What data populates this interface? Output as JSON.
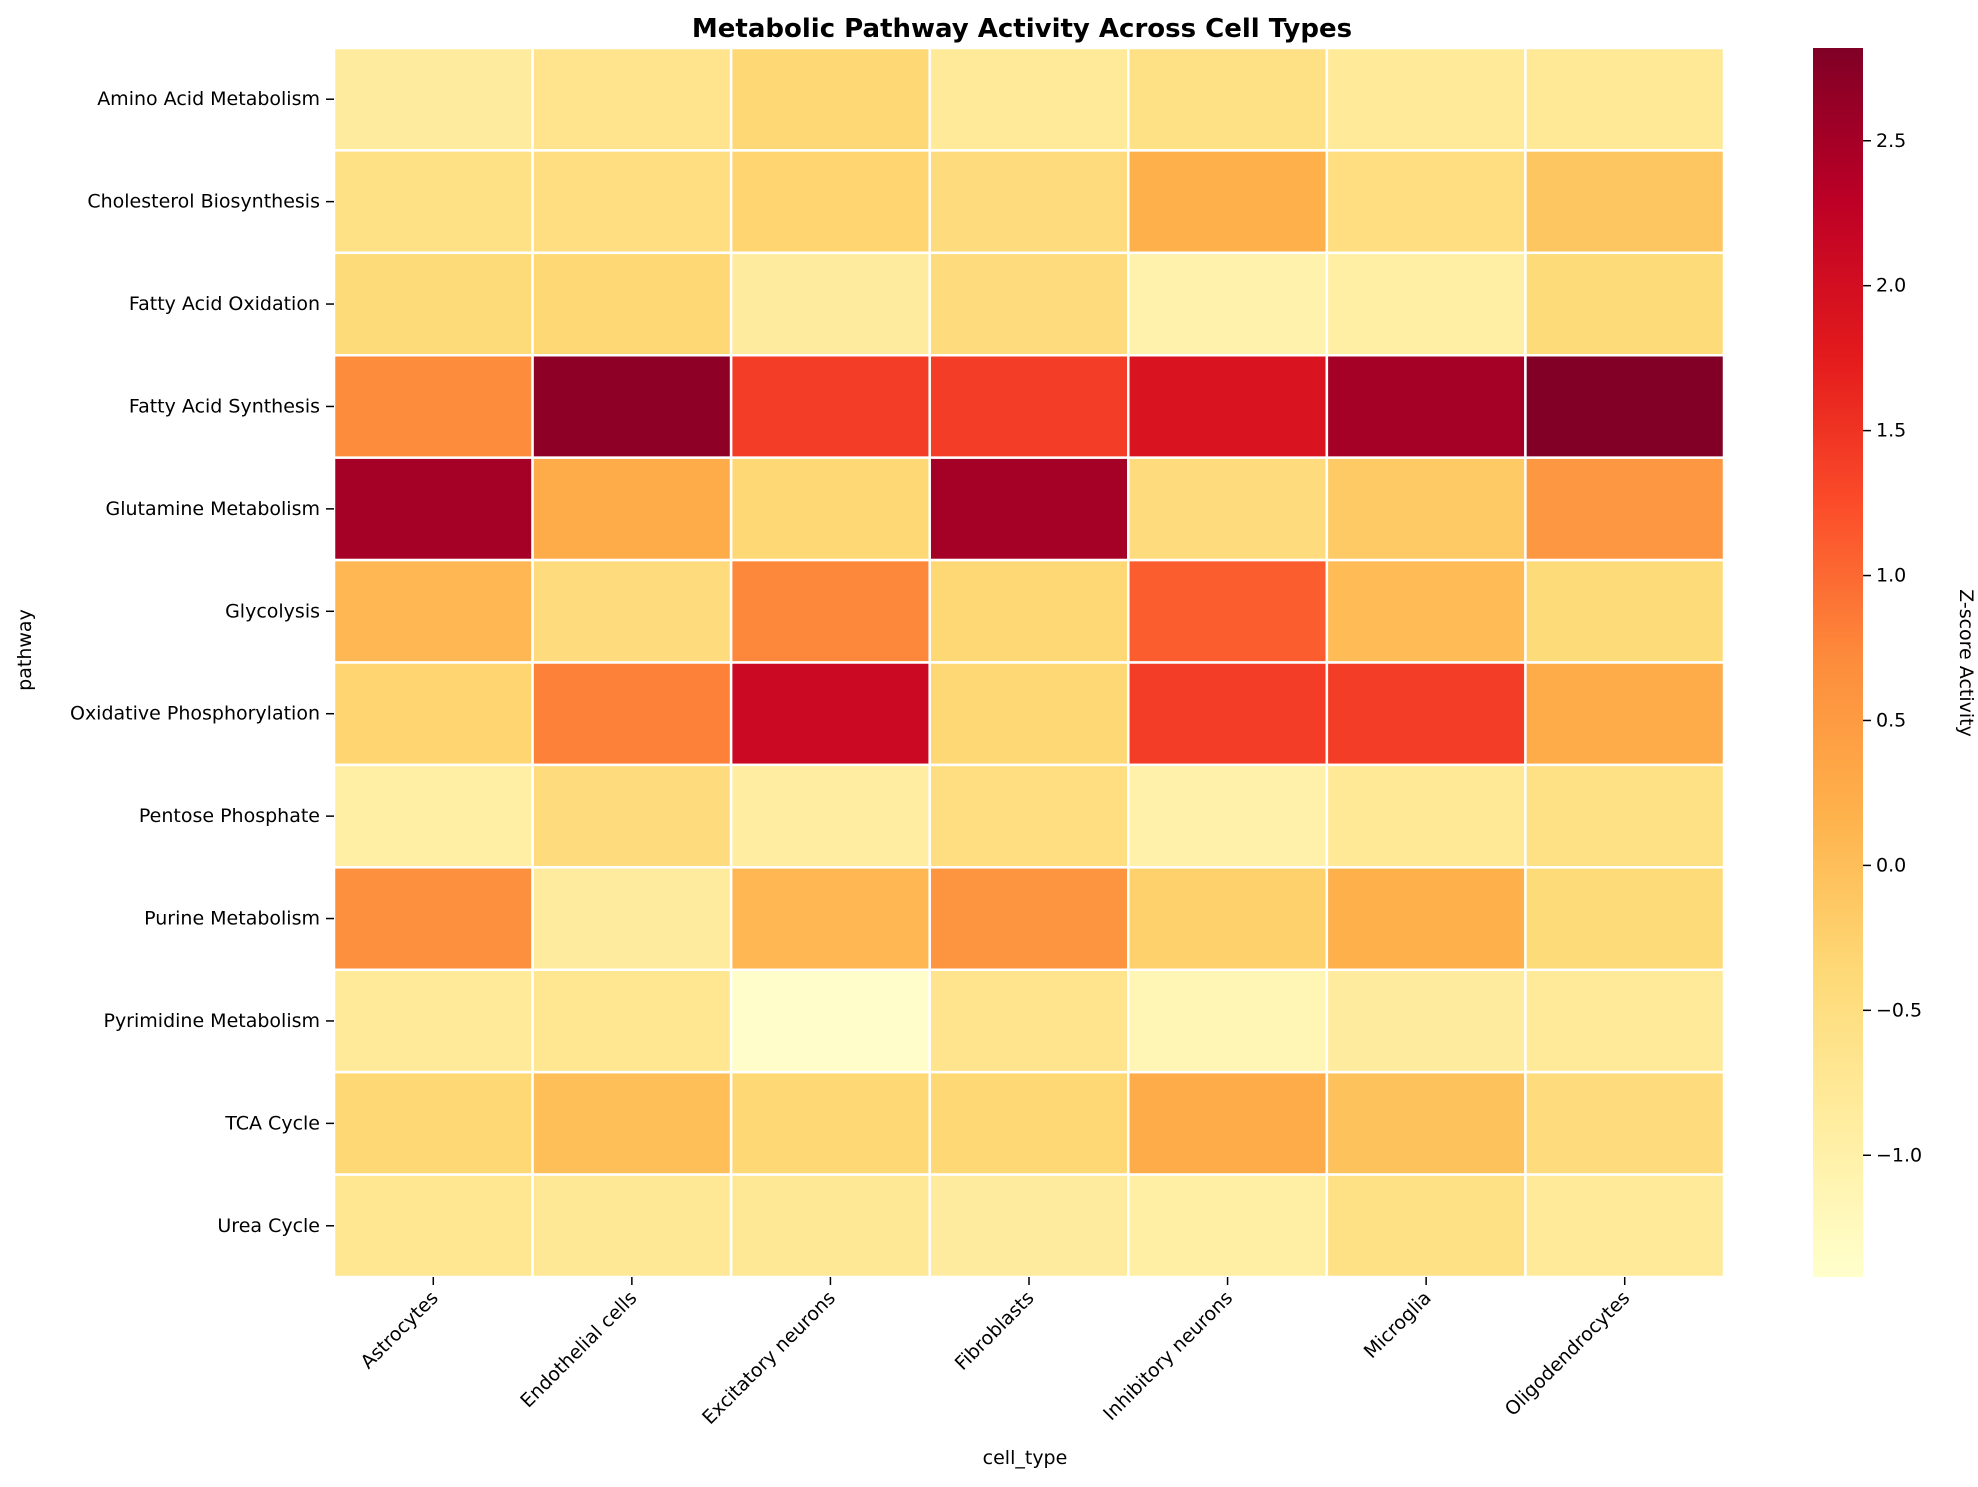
{
  "chart_data": {
    "type": "heatmap",
    "title": "Metabolic Pathway Activity Across Cell Types",
    "xlabel": "cell_type",
    "ylabel": "pathway",
    "x_categories": [
      "Astrocytes",
      "Endothelial cells",
      "Excitatory neurons",
      "Fibroblasts",
      "Inhibitory neurons",
      "Microglia",
      "Oligodendrocytes"
    ],
    "y_categories": [
      "Amino Acid Metabolism",
      "Cholesterol Biosynthesis",
      "Fatty Acid Oxidation",
      "Fatty Acid Synthesis",
      "Glutamine Metabolism",
      "Glycolysis",
      "Oxidative Phosphorylation",
      "Pentose Phosphate",
      "Purine Metabolism",
      "Pyrimidine Metabolism",
      "TCA Cycle",
      "Urea Cycle"
    ],
    "values": [
      [
        -0.85,
        -0.65,
        -0.35,
        -0.8,
        -0.55,
        -0.82,
        -0.78
      ],
      [
        -0.55,
        -0.5,
        -0.3,
        -0.45,
        0.2,
        -0.5,
        -0.1
      ],
      [
        -0.4,
        -0.35,
        -0.85,
        -0.45,
        -1.05,
        -0.95,
        -0.4
      ],
      [
        0.7,
        2.7,
        1.4,
        1.4,
        1.9,
        2.5,
        2.8
      ],
      [
        2.5,
        0.25,
        -0.35,
        2.5,
        -0.45,
        -0.15,
        0.55
      ],
      [
        0.1,
        -0.45,
        0.75,
        -0.35,
        1.1,
        0.05,
        -0.4
      ],
      [
        -0.3,
        0.8,
        2.1,
        -0.35,
        1.4,
        1.4,
        0.25
      ],
      [
        -0.95,
        -0.45,
        -0.9,
        -0.5,
        -1.0,
        -0.78,
        -0.55
      ],
      [
        0.65,
        -0.85,
        0.1,
        0.6,
        -0.25,
        0.2,
        -0.4
      ],
      [
        -0.8,
        -0.7,
        -1.4,
        -0.65,
        -1.15,
        -0.85,
        -0.82
      ],
      [
        -0.35,
        0.0,
        -0.35,
        -0.35,
        0.25,
        -0.05,
        -0.45
      ],
      [
        -0.7,
        -0.75,
        -0.75,
        -0.85,
        -0.95,
        -0.55,
        -0.8
      ]
    ],
    "vmin": -1.42,
    "vmax": 2.82,
    "colormap": "YlOrRd",
    "colormap_stops": [
      "#ffffcc",
      "#ffeda0",
      "#fed976",
      "#feb24c",
      "#fd8d3c",
      "#fc4e2a",
      "#e31a1c",
      "#bd0026",
      "#800026"
    ],
    "cell_border_color": "#ffffff",
    "colorbar": {
      "label": "Z-score Activity",
      "ticks": [
        2.5,
        2.0,
        1.5,
        1.0,
        0.5,
        0.0,
        -0.5,
        -1.0
      ],
      "tick_labels": [
        "2.5",
        "2.0",
        "1.5",
        "1.0",
        "0.5",
        "0.0",
        "−0.5",
        "−1.0"
      ]
    }
  }
}
